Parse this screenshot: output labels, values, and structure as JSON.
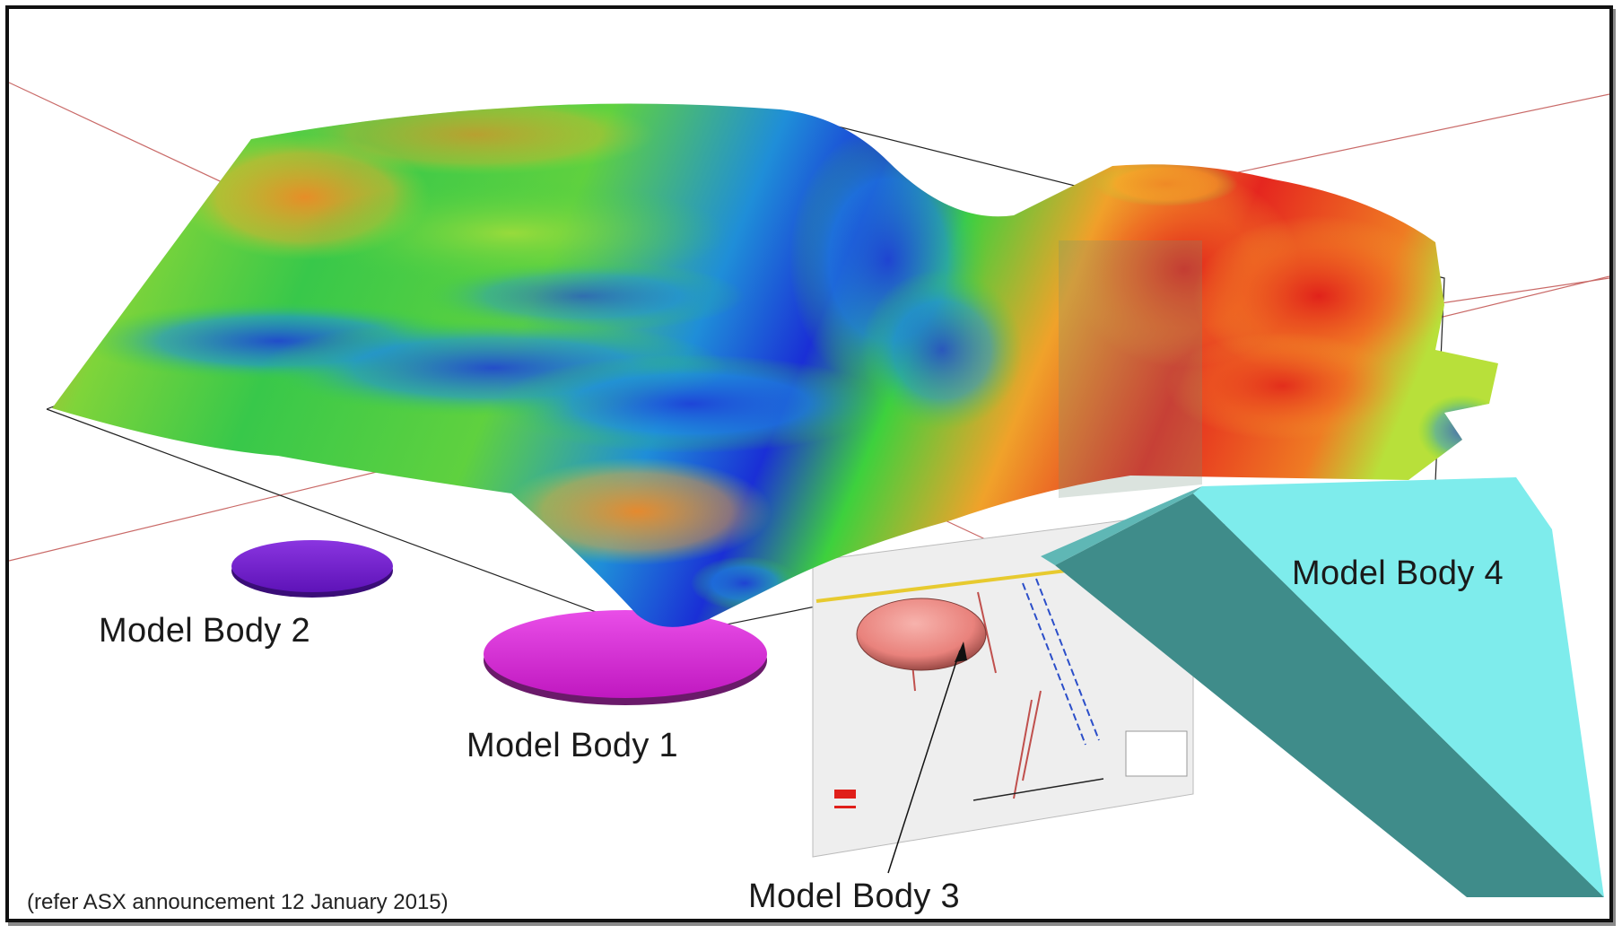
{
  "figure": {
    "labels": {
      "body1": "Model Body 1",
      "body2": "Model Body 2",
      "body3": "Model Body 3",
      "body4": "Model Body 4"
    },
    "caption": "(refer ASX announcement 12 January 2015)"
  },
  "colors": {
    "body1": "#e33be3",
    "body2": "#7a1fd6",
    "body3": "#f08b86",
    "body4_face": "#7eecec",
    "body4_side": "#3f8c8a",
    "surface_high": "#e5261f",
    "surface_mid": "#3dd13d",
    "surface_low": "#1a2fd6",
    "gridline": "#c0504d",
    "frame": "#111111"
  }
}
